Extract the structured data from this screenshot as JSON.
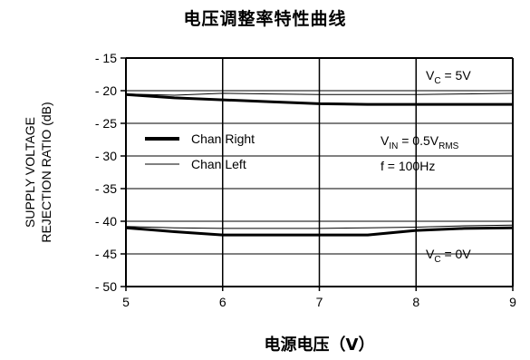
{
  "chart_data": {
    "type": "line",
    "title": "电压调整率特性曲线",
    "xlabel": "电源电压（V）",
    "ylabel_line1": "SUPPLY VOLTAGE",
    "ylabel_line2": "REJECTION RATIO (dB)",
    "xlim": [
      5,
      9
    ],
    "ylim": [
      -50,
      -15
    ],
    "x_ticks": [
      "5",
      "6",
      "7",
      "8",
      "9"
    ],
    "y_ticks": [
      "- 15",
      "- 20",
      "- 25",
      "- 30",
      "- 35",
      "- 40",
      "- 45",
      "- 50"
    ],
    "grid": true,
    "series": [
      {
        "name": "Chan Right",
        "condition": "VC = 5V",
        "style": "thick",
        "x": [
          5,
          5.5,
          6,
          6.5,
          7,
          7.5,
          8,
          8.5,
          9
        ],
        "y": [
          -20.6,
          -21.1,
          -21.4,
          -21.7,
          -22.0,
          -22.1,
          -22.1,
          -22.1,
          -22.1
        ]
      },
      {
        "name": "Chan Left",
        "condition": "VC = 5V",
        "style": "thin",
        "x": [
          5,
          5.5,
          6,
          6.5,
          7,
          7.5,
          8,
          8.5,
          9
        ],
        "y": [
          -20.5,
          -20.7,
          -20.4,
          -20.5,
          -20.6,
          -20.6,
          -20.6,
          -20.5,
          -20.4
        ]
      },
      {
        "name": "Chan Right",
        "condition": "VC = 0V",
        "style": "thick",
        "x": [
          5,
          5.5,
          6,
          6.5,
          7,
          7.5,
          8,
          8.5,
          9
        ],
        "y": [
          -41.0,
          -41.6,
          -42.1,
          -42.1,
          -42.1,
          -42.1,
          -41.4,
          -41.1,
          -41.0
        ]
      },
      {
        "name": "Chan Left",
        "condition": "VC = 0V",
        "style": "thin",
        "x": [
          5,
          5.5,
          6,
          6.5,
          7,
          7.5,
          8,
          8.5,
          9
        ],
        "y": [
          -40.8,
          -41.0,
          -41.1,
          -41.1,
          -41.1,
          -41.0,
          -40.9,
          -40.7,
          -40.6
        ]
      }
    ],
    "legend": [
      {
        "label": "Chan Right",
        "style": "thick"
      },
      {
        "label": "Chan Left",
        "style": "thin"
      }
    ],
    "legend_placement": "center-left",
    "annotations": {
      "vc_high": {
        "main": "V",
        "sub": "C",
        "rest": " = 5V"
      },
      "vc_low": {
        "main": "V",
        "sub": "C",
        "rest": " = 0V"
      },
      "vin": {
        "main": "V",
        "sub": "IN",
        "mid": " = 0.5V",
        "sub2": "RMS"
      },
      "freq": "f = 100Hz"
    },
    "colors": {
      "line": "#000000",
      "grid": "#000000",
      "background": "#ffffff"
    }
  }
}
